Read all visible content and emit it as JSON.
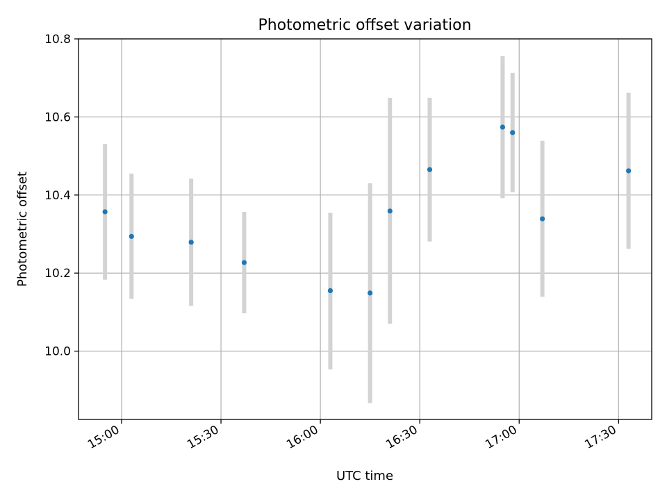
{
  "chart_data": {
    "type": "scatter",
    "title": "Photometric offset variation",
    "xlabel": "UTC time",
    "ylabel": "Photometric offset",
    "grid": true,
    "xlim": [
      "14:47",
      "17:40"
    ],
    "ylim": [
      9.825,
      10.8
    ],
    "x_ticks": [
      "15:00",
      "15:30",
      "16:00",
      "16:30",
      "17:00",
      "17:30"
    ],
    "y_ticks": [
      10.0,
      10.2,
      10.4,
      10.6,
      10.8
    ],
    "y_tick_labels": [
      "10.0",
      "10.2",
      "10.4",
      "10.6",
      "10.8"
    ],
    "point_color": "#1f77b4",
    "error_color": "#d3d3d3",
    "series": [
      {
        "points": [
          {
            "x": "14:55",
            "y": 10.357,
            "ylow": 10.183,
            "yhigh": 10.531
          },
          {
            "x": "15:03",
            "y": 10.294,
            "ylow": 10.134,
            "yhigh": 10.455
          },
          {
            "x": "15:21",
            "y": 10.279,
            "ylow": 10.116,
            "yhigh": 10.442
          },
          {
            "x": "15:37",
            "y": 10.227,
            "ylow": 10.097,
            "yhigh": 10.357
          },
          {
            "x": "16:03",
            "y": 10.155,
            "ylow": 9.953,
            "yhigh": 10.354
          },
          {
            "x": "16:15",
            "y": 10.149,
            "ylow": 9.867,
            "yhigh": 10.43
          },
          {
            "x": "16:21",
            "y": 10.359,
            "ylow": 10.07,
            "yhigh": 10.649
          },
          {
            "x": "16:33",
            "y": 10.465,
            "ylow": 10.281,
            "yhigh": 10.649
          },
          {
            "x": "16:55",
            "y": 10.574,
            "ylow": 10.392,
            "yhigh": 10.756
          },
          {
            "x": "16:58",
            "y": 10.56,
            "ylow": 10.407,
            "yhigh": 10.713
          },
          {
            "x": "17:07",
            "y": 10.339,
            "ylow": 10.139,
            "yhigh": 10.539
          },
          {
            "x": "17:33",
            "y": 10.462,
            "ylow": 10.262,
            "yhigh": 10.662
          }
        ]
      }
    ]
  }
}
